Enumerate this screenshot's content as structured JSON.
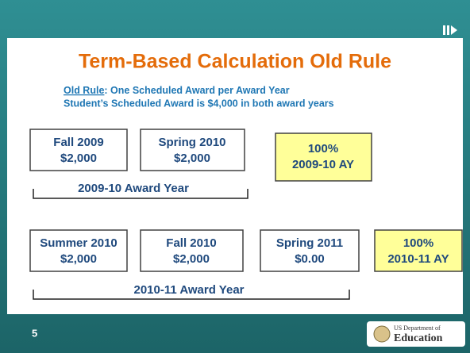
{
  "slide": {
    "title": "Term-Based Calculation Old Rule",
    "rule": {
      "label": "Old Rule",
      "text": ":  One Scheduled Award per Award Year",
      "line2": "Student’s Scheduled Award is $4,000 in both award years"
    },
    "years": [
      {
        "terms": [
          {
            "name": "Fall 2009",
            "amount": "$2,000"
          },
          {
            "name": "Spring 2010",
            "amount": "$2,000"
          }
        ],
        "summary": {
          "percent": "100%",
          "ay": "2009-10 AY"
        },
        "label": "2009-10 Award Year"
      },
      {
        "terms": [
          {
            "name": "Summer 2010",
            "amount": "$2,000"
          },
          {
            "name": "Fall 2010",
            "amount": "$2,000"
          },
          {
            "name": "Spring 2011",
            "amount": "$0.00"
          }
        ],
        "summary": {
          "percent": "100%",
          "ay": "2010-11 AY"
        },
        "label": "2010-11 Award Year"
      }
    ],
    "page": "5",
    "logo": {
      "line1": "US Department of",
      "line2": "Education"
    }
  }
}
